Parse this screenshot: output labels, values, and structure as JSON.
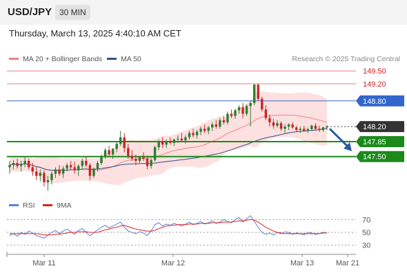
{
  "header": {
    "symbol": "USD/JPY",
    "interval": "30 MIN"
  },
  "datetime": "Thursday, March 13, 2025 4:40:10 AM CET",
  "legend": [
    {
      "label": "MA 20 + Bollinger Bands",
      "color": "#f08080"
    },
    {
      "label": "MA 50",
      "color": "#2c4f8a"
    }
  ],
  "copyright": "Research © 2025 Trading Central",
  "rsi_legend": [
    {
      "label": "RSI",
      "color": "#5b7fd6"
    },
    {
      "label": "9MA",
      "color": "#e02020"
    }
  ],
  "colors": {
    "up_candle": "#2e7d32",
    "down_candle": "#c62828",
    "bollinger_fill": "#fde0e0",
    "support": "#1b8a1b",
    "resistance": "#f08080",
    "pivot": "#3366cc",
    "current": "#333333",
    "arrow": "#2c5aa0"
  },
  "chart_data": [
    {
      "type": "candlestick",
      "title": "USD/JPY",
      "x_tick_labels": [
        "Mar 11",
        "Mar 12",
        "Mar 13",
        "Mar 21"
      ],
      "y_range": [
        146.5,
        149.6
      ],
      "levels": [
        {
          "value": 149.5,
          "label": "149.50",
          "kind": "resistance"
        },
        {
          "value": 149.2,
          "label": "149.20",
          "kind": "resistance"
        },
        {
          "value": 148.8,
          "label": "148.80",
          "kind": "pivot"
        },
        {
          "value": 148.2,
          "label": "148.20",
          "kind": "current"
        },
        {
          "value": 147.85,
          "label": "147.85",
          "kind": "support"
        },
        {
          "value": 147.5,
          "label": "147.50",
          "kind": "support"
        }
      ],
      "forecast_arrow": {
        "from": 148.15,
        "to": 147.85
      },
      "ohlc": [
        [
          147.25,
          147.4,
          147.1,
          147.3
        ],
        [
          147.3,
          147.42,
          147.2,
          147.35
        ],
        [
          147.35,
          147.45,
          147.22,
          147.28
        ],
        [
          147.28,
          147.4,
          147.15,
          147.33
        ],
        [
          147.33,
          147.48,
          147.25,
          147.4
        ],
        [
          147.4,
          147.45,
          147.2,
          147.25
        ],
        [
          147.25,
          147.35,
          147.05,
          147.15
        ],
        [
          147.15,
          147.25,
          146.95,
          147.05
        ],
        [
          147.05,
          147.2,
          146.92,
          147.12
        ],
        [
          147.12,
          147.18,
          146.8,
          146.9
        ],
        [
          146.9,
          147.05,
          146.7,
          146.95
        ],
        [
          146.95,
          147.15,
          146.85,
          147.1
        ],
        [
          147.1,
          147.25,
          147.0,
          147.2
        ],
        [
          147.2,
          147.3,
          147.05,
          147.1
        ],
        [
          147.1,
          147.28,
          147.0,
          147.22
        ],
        [
          147.22,
          147.35,
          147.15,
          147.3
        ],
        [
          147.3,
          147.4,
          147.2,
          147.25
        ],
        [
          147.25,
          147.38,
          147.1,
          147.18
        ],
        [
          147.18,
          147.32,
          147.05,
          147.28
        ],
        [
          147.28,
          147.45,
          147.2,
          147.4
        ],
        [
          147.4,
          147.5,
          147.25,
          147.3
        ],
        [
          147.3,
          147.35,
          146.95,
          147.05
        ],
        [
          147.05,
          147.25,
          147.0,
          147.22
        ],
        [
          147.22,
          147.4,
          147.15,
          147.35
        ],
        [
          147.35,
          147.55,
          147.3,
          147.5
        ],
        [
          147.5,
          147.7,
          147.45,
          147.65
        ],
        [
          147.65,
          147.75,
          147.5,
          147.55
        ],
        [
          147.55,
          147.7,
          147.45,
          147.68
        ],
        [
          147.68,
          147.85,
          147.6,
          147.8
        ],
        [
          147.8,
          148.1,
          147.75,
          147.95
        ],
        [
          147.95,
          148.05,
          147.6,
          147.7
        ],
        [
          147.7,
          147.8,
          147.45,
          147.52
        ],
        [
          147.52,
          147.65,
          147.4,
          147.45
        ],
        [
          147.45,
          147.55,
          147.3,
          147.4
        ],
        [
          147.4,
          147.5,
          147.35,
          147.48
        ],
        [
          147.48,
          147.6,
          147.4,
          147.45
        ],
        [
          147.45,
          147.52,
          147.2,
          147.28
        ],
        [
          147.28,
          147.45,
          147.22,
          147.42
        ],
        [
          147.42,
          147.75,
          147.38,
          147.72
        ],
        [
          147.72,
          147.9,
          147.65,
          147.85
        ],
        [
          147.85,
          147.95,
          147.7,
          147.78
        ],
        [
          147.78,
          147.9,
          147.7,
          147.86
        ],
        [
          147.86,
          147.95,
          147.78,
          147.82
        ],
        [
          147.82,
          147.92,
          147.75,
          147.9
        ],
        [
          147.9,
          148.0,
          147.82,
          147.92
        ],
        [
          147.92,
          148.05,
          147.85,
          147.88
        ],
        [
          147.88,
          148.0,
          147.8,
          147.95
        ],
        [
          147.95,
          148.1,
          147.9,
          148.05
        ],
        [
          148.05,
          148.15,
          147.95,
          148.0
        ],
        [
          148.0,
          148.12,
          147.92,
          148.08
        ],
        [
          148.08,
          148.2,
          148.0,
          148.15
        ],
        [
          148.15,
          148.25,
          148.05,
          148.1
        ],
        [
          148.1,
          148.22,
          148.02,
          148.18
        ],
        [
          148.18,
          148.3,
          148.1,
          148.25
        ],
        [
          148.25,
          148.35,
          148.15,
          148.2
        ],
        [
          148.2,
          148.4,
          148.15,
          148.35
        ],
        [
          148.35,
          148.45,
          148.25,
          148.3
        ],
        [
          148.3,
          148.55,
          148.25,
          148.5
        ],
        [
          148.5,
          148.6,
          148.4,
          148.45
        ],
        [
          148.45,
          148.62,
          148.38,
          148.58
        ],
        [
          148.58,
          148.7,
          148.5,
          148.65
        ],
        [
          148.65,
          148.75,
          148.4,
          148.5
        ],
        [
          148.5,
          148.72,
          148.45,
          148.68
        ],
        [
          148.68,
          148.8,
          148.2,
          148.75
        ],
        [
          148.75,
          149.2,
          148.7,
          149.18
        ],
        [
          149.18,
          149.2,
          148.8,
          148.85
        ],
        [
          148.85,
          148.9,
          148.55,
          148.6
        ],
        [
          148.6,
          148.7,
          148.35,
          148.4
        ],
        [
          148.4,
          148.48,
          148.2,
          148.3
        ],
        [
          148.3,
          148.38,
          148.15,
          148.22
        ],
        [
          148.22,
          148.35,
          148.18,
          148.28
        ],
        [
          148.28,
          148.32,
          148.1,
          148.15
        ],
        [
          148.15,
          148.25,
          148.05,
          148.2
        ],
        [
          148.2,
          148.28,
          148.12,
          148.25
        ],
        [
          148.25,
          148.3,
          148.15,
          148.18
        ],
        [
          148.18,
          148.22,
          148.08,
          148.12
        ],
        [
          148.12,
          148.2,
          148.05,
          148.15
        ],
        [
          148.15,
          148.22,
          148.08,
          148.1
        ],
        [
          148.1,
          148.18,
          148.05,
          148.14
        ],
        [
          148.14,
          148.25,
          148.1,
          148.22
        ],
        [
          148.22,
          148.28,
          148.12,
          148.15
        ],
        [
          148.15,
          148.22,
          148.08,
          148.12
        ],
        [
          148.12,
          148.2,
          148.08,
          148.18
        ],
        [
          148.18,
          148.24,
          148.12,
          148.2
        ]
      ]
    },
    {
      "type": "line",
      "title": "RSI",
      "y_range": [
        20,
        80
      ],
      "y_ticks": [
        70,
        50,
        30
      ],
      "series": [
        {
          "name": "RSI",
          "values": [
            45,
            48,
            44,
            50,
            47,
            52,
            49,
            45,
            43,
            41,
            46,
            50,
            53,
            48,
            52,
            55,
            51,
            47,
            53,
            56,
            50,
            45,
            49,
            54,
            58,
            61,
            57,
            60,
            63,
            66,
            58,
            52,
            50,
            48,
            51,
            49,
            45,
            52,
            62,
            65,
            60,
            63,
            61,
            64,
            62,
            60,
            63,
            66,
            62,
            64,
            67,
            63,
            65,
            68,
            64,
            66,
            70,
            67,
            65,
            70,
            73,
            66,
            71,
            76,
            67,
            58,
            50,
            47,
            49,
            46,
            50,
            48,
            51,
            50,
            47,
            49,
            48,
            46,
            50,
            49,
            47,
            48,
            50,
            49
          ]
        },
        {
          "name": "9MA",
          "values": [
            48,
            48,
            48,
            48,
            48,
            48,
            48,
            48,
            47,
            46,
            46,
            46,
            47,
            47,
            48,
            49,
            50,
            50,
            51,
            51,
            51,
            50,
            50,
            50,
            52,
            54,
            55,
            57,
            58,
            60,
            61,
            59,
            57,
            55,
            54,
            53,
            52,
            52,
            53,
            56,
            58,
            60,
            61,
            61,
            62,
            62,
            62,
            63,
            63,
            63,
            64,
            64,
            64,
            65,
            65,
            65,
            66,
            66,
            66,
            67,
            68,
            68,
            69,
            70,
            69,
            66,
            62,
            58,
            55,
            52,
            50,
            49,
            48,
            48,
            48,
            48,
            48,
            48,
            48,
            48,
            48,
            48,
            49,
            49
          ]
        }
      ]
    }
  ]
}
